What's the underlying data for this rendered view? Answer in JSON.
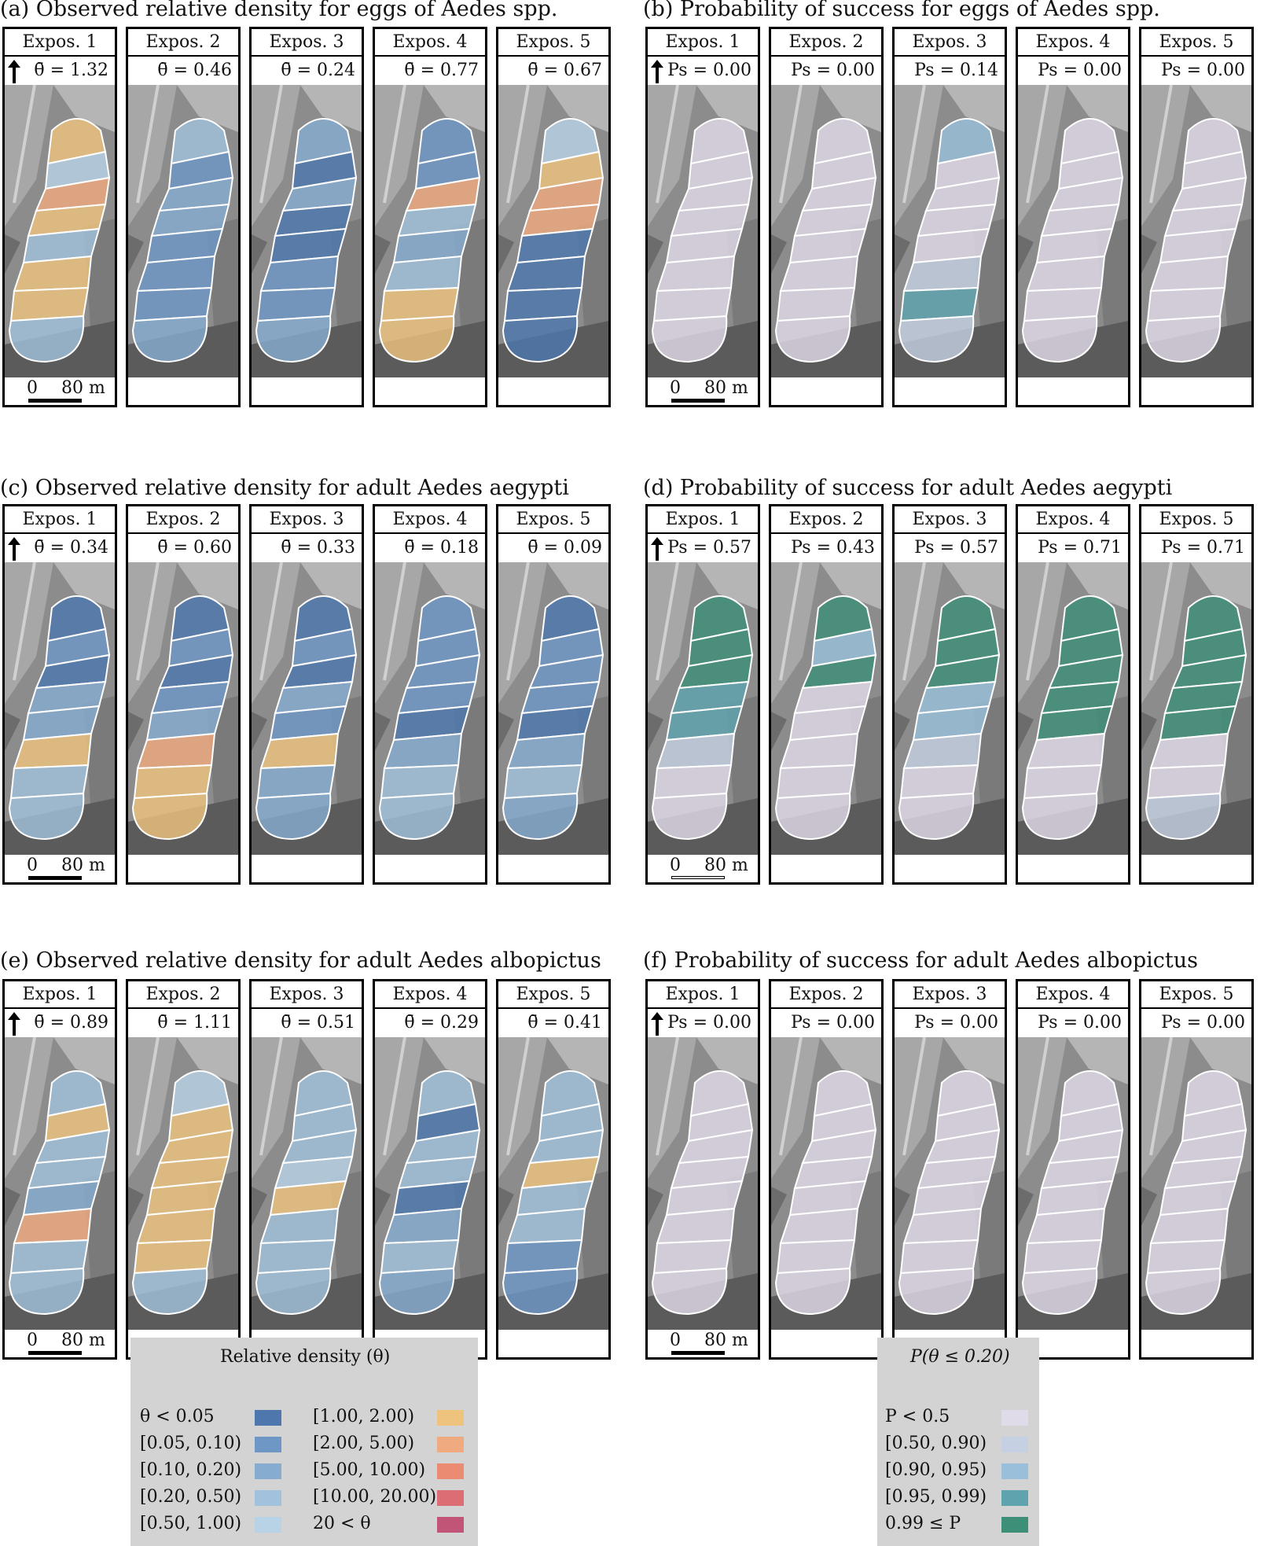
{
  "figure": {
    "expos_labels": [
      "Expos. 1",
      "Expos. 2",
      "Expos. 3",
      "Expos. 4",
      "Expos. 5"
    ],
    "scale": {
      "zero": "0",
      "distance": "80 m"
    },
    "panels": [
      {
        "id": "a",
        "title": "(a) Observed relative density for eggs of Aedes spp.",
        "kind": "density",
        "stat_symbol": "θ̄ =",
        "stats": [
          "1.32",
          "0.46",
          "0.24",
          "0.77",
          "0.67"
        ]
      },
      {
        "id": "b",
        "title": "(b) Probability of success for eggs of Aedes spp.",
        "kind": "probability",
        "stat_symbol": "Ps = ",
        "stats": [
          "0.00",
          "0.00",
          "0.14",
          "0.00",
          "0.00"
        ]
      },
      {
        "id": "c",
        "title": "(c) Observed relative density for adult Aedes aegypti",
        "kind": "density",
        "stat_symbol": "θ̄ =",
        "stats": [
          "0.34",
          "0.60",
          "0.33",
          "0.18",
          "0.09"
        ]
      },
      {
        "id": "d",
        "title": "(d) Probability of success for adult Aedes aegypti",
        "kind": "probability",
        "stat_symbol": "Ps = ",
        "stats": [
          "0.57",
          "0.43",
          "0.57",
          "0.71",
          "0.71"
        ]
      },
      {
        "id": "e",
        "title": "(e) Observed relative density for adult Aedes albopictus",
        "kind": "density",
        "stat_symbol": "θ̄ =",
        "stats": [
          "0.89",
          "1.11",
          "0.51",
          "0.29",
          "0.41"
        ]
      },
      {
        "id": "f",
        "title": "(f) Probability of success for adult Aedes albopictus",
        "kind": "probability",
        "stat_symbol": "Ps = ",
        "stats": [
          "0.00",
          "0.00",
          "0.00",
          "0.00",
          "0.00"
        ]
      }
    ],
    "zone_classes": {
      "a": [
        [
          "5",
          "3",
          "2",
          "1",
          "4"
        ],
        [
          "4",
          "1",
          "0",
          "1",
          "5"
        ],
        [
          "6",
          "2",
          "2",
          "6",
          "6"
        ],
        [
          "5",
          "2",
          "0",
          "3",
          "6"
        ],
        [
          "3",
          "1",
          "0",
          "2",
          "0"
        ],
        [
          "5",
          "1",
          "1",
          "3",
          "0"
        ],
        [
          "5",
          "1",
          "1",
          "5",
          "0"
        ],
        [
          "3",
          "2",
          "2",
          "5",
          "0"
        ]
      ],
      "b": [
        [
          "P",
          "P",
          "B",
          "P",
          "P"
        ],
        [
          "P",
          "P",
          "P",
          "P",
          "P"
        ],
        [
          "P",
          "P",
          "P",
          "P",
          "P"
        ],
        [
          "P",
          "P",
          "P",
          "P",
          "P"
        ],
        [
          "P",
          "P",
          "P",
          "P",
          "P"
        ],
        [
          "P",
          "P",
          "S",
          "P",
          "P"
        ],
        [
          "P",
          "P",
          "T",
          "P",
          "P"
        ],
        [
          "P",
          "P",
          "S",
          "P",
          "P"
        ]
      ],
      "c": [
        [
          "0",
          "0",
          "0",
          "1",
          "0"
        ],
        [
          "1",
          "1",
          "1",
          "1",
          "1"
        ],
        [
          "0",
          "0",
          "0",
          "1",
          "1"
        ],
        [
          "2",
          "1",
          "2",
          "1",
          "1"
        ],
        [
          "2",
          "2",
          "1",
          "0",
          "0"
        ],
        [
          "5",
          "6",
          "5",
          "2",
          "2"
        ],
        [
          "3",
          "5",
          "2",
          "3",
          "3"
        ],
        [
          "3",
          "5",
          "2",
          "3",
          "2"
        ]
      ],
      "d": [
        [
          "G",
          "G",
          "G",
          "G",
          "G"
        ],
        [
          "G",
          "B",
          "G",
          "G",
          "G"
        ],
        [
          "G",
          "G",
          "G",
          "G",
          "G"
        ],
        [
          "T",
          "P",
          "B",
          "G",
          "G"
        ],
        [
          "T",
          "P",
          "B",
          "G",
          "G"
        ],
        [
          "S",
          "P",
          "S",
          "P",
          "P"
        ],
        [
          "P",
          "P",
          "P",
          "P",
          "P"
        ],
        [
          "P",
          "P",
          "P",
          "P",
          "S"
        ]
      ],
      "e": [
        [
          "3",
          "4",
          "3",
          "3",
          "3"
        ],
        [
          "5",
          "5",
          "3",
          "0",
          "3"
        ],
        [
          "3",
          "5",
          "3",
          "3",
          "3"
        ],
        [
          "3",
          "5",
          "4",
          "3",
          "5"
        ],
        [
          "2",
          "5",
          "5",
          "0",
          "3"
        ],
        [
          "6",
          "5",
          "3",
          "2",
          "3"
        ],
        [
          "3",
          "5",
          "3",
          "3",
          "1"
        ],
        [
          "3",
          "3",
          "3",
          "2",
          "1"
        ]
      ],
      "f": [
        [
          "P",
          "P",
          "P",
          "P",
          "P"
        ],
        [
          "P",
          "P",
          "P",
          "P",
          "P"
        ],
        [
          "P",
          "P",
          "P",
          "P",
          "P"
        ],
        [
          "P",
          "P",
          "P",
          "P",
          "P"
        ],
        [
          "P",
          "P",
          "P",
          "P",
          "P"
        ],
        [
          "P",
          "P",
          "P",
          "P",
          "P"
        ],
        [
          "P",
          "P",
          "P",
          "P",
          "P"
        ],
        [
          "P",
          "P",
          "P",
          "P",
          "P"
        ]
      ]
    }
  },
  "legend_density": {
    "title": "Relative density (θ)",
    "left": [
      {
        "label": "θ < 0.05",
        "color": "#4d77ad"
      },
      {
        "label": "[0.05, 0.10)",
        "color": "#6f97c6"
      },
      {
        "label": "[0.10, 0.20)",
        "color": "#86acd0"
      },
      {
        "label": "[0.20, 0.50)",
        "color": "#a1c1dc"
      },
      {
        "label": "[0.50, 1.00)",
        "color": "#b8d3e6"
      }
    ],
    "right": [
      {
        "label": "[1.00, 2.00)",
        "color": "#eec37e"
      },
      {
        "label": "[2.00, 5.00)",
        "color": "#efaa80"
      },
      {
        "label": "[5.00, 10.00)",
        "color": "#eb8c72"
      },
      {
        "label": "[10.00, 20.00)",
        "color": "#dc6d74"
      },
      {
        "label": "20 < θ",
        "color": "#c05577"
      }
    ]
  },
  "legend_probability": {
    "title": "P(θ ≤ 0.20)",
    "items": [
      {
        "label": "P < 0.5",
        "color": "#e0dbe8"
      },
      {
        "label": "[0.50, 0.90)",
        "color": "#c5d0e2"
      },
      {
        "label": "[0.90, 0.95)",
        "color": "#99bfdb"
      },
      {
        "label": "[0.95, 0.99)",
        "color": "#5fa3ae"
      },
      {
        "label": "0.99 ≤ P",
        "color": "#3d8f78"
      }
    ]
  }
}
